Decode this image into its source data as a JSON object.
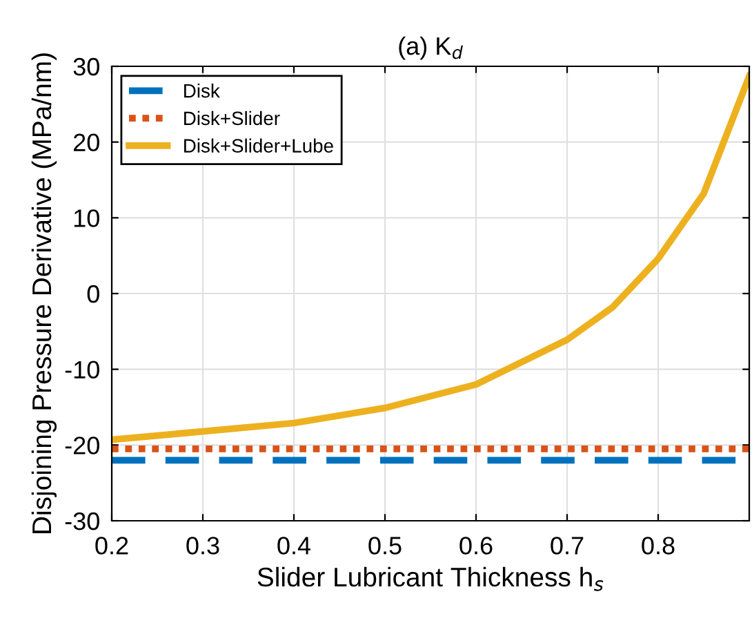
{
  "chart_data": {
    "type": "line",
    "title": "(a) K$_{d}$",
    "xlabel": "Slider Lubricant Thickness h$_{s}$",
    "ylabel": "Disjoining Pressure Derivative (MPa/nm)",
    "xlim": [
      0.2,
      0.9
    ],
    "xticks": [
      0.2,
      0.3,
      0.4,
      0.5,
      0.6,
      0.7,
      0.8
    ],
    "ylim": [
      -30,
      30
    ],
    "yticks": [
      -30,
      -20,
      -10,
      0,
      10,
      20,
      30
    ],
    "grid": true,
    "legend": "top left",
    "series": [
      {
        "name": "Disk",
        "color": "#0072bd",
        "line_style": "dashed",
        "x": [
          0.2,
          0.9
        ],
        "values": [
          -22,
          -22
        ]
      },
      {
        "name": "Disk+Slider",
        "color": "#d95319",
        "line_style": "dotted",
        "x": [
          0.2,
          0.9
        ],
        "values": [
          -20.5,
          -20.5
        ]
      },
      {
        "name": "Disk+Slider+Lube",
        "color": "#edb120",
        "line_style": "solid",
        "x": [
          0.2,
          0.3,
          0.4,
          0.5,
          0.6,
          0.7,
          0.75,
          0.8,
          0.85,
          0.9
        ],
        "values": [
          -19.3,
          -18.2,
          -17.1,
          -15.1,
          -12,
          -6.1,
          -1.8,
          4.6,
          13.2,
          28.7
        ]
      }
    ]
  }
}
